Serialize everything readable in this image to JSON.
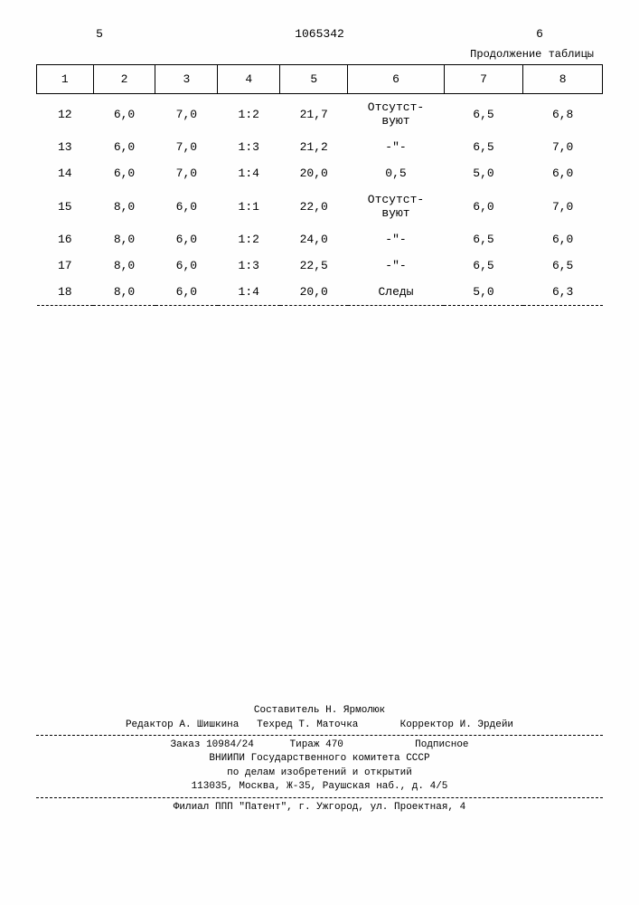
{
  "header": {
    "page_col_left": "5",
    "doc_number": "1065342",
    "page_col_right": "6",
    "continuation_label": "Продолжение таблицы"
  },
  "table": {
    "column_widths": [
      "10%",
      "11%",
      "11%",
      "11%",
      "12%",
      "17%",
      "14%",
      "14%"
    ],
    "headers": [
      "1",
      "2",
      "3",
      "4",
      "5",
      "6",
      "7",
      "8"
    ],
    "rows": [
      [
        "12",
        "6,0",
        "7,0",
        "1:2",
        "21,7",
        "Отсутст-\nвуют",
        "6,5",
        "6,8"
      ],
      [
        "13",
        "6,0",
        "7,0",
        "1:3",
        "21,2",
        "-\"-",
        "6,5",
        "7,0"
      ],
      [
        "14",
        "6,0",
        "7,0",
        "1:4",
        "20,0",
        "0,5",
        "5,0",
        "6,0"
      ],
      [
        "15",
        "8,0",
        "6,0",
        "1:1",
        "22,0",
        "Отсутст-\nвуют",
        "6,0",
        "7,0"
      ],
      [
        "16",
        "8,0",
        "6,0",
        "1:2",
        "24,0",
        "-\"-",
        "6,5",
        "6,0"
      ],
      [
        "17",
        "8,0",
        "6,0",
        "1:3",
        "22,5",
        "-\"-",
        "6,5",
        "6,5"
      ],
      [
        "18",
        "8,0",
        "6,0",
        "1:4",
        "20,0",
        "Следы",
        "5,0",
        "6,3"
      ]
    ]
  },
  "footer": {
    "compiler_label": "Составитель Н. Ярмолюк",
    "editor_line": "Редактор А. Шишкина   Техред Т. Маточка       Корректор И. Эрдейи",
    "order_line": "Заказ 10984/24      Тираж 470            Подписное",
    "org_line1": "ВНИИПИ Государственного комитета СССР",
    "org_line2": "по делам изобретений и открытий",
    "address_line": "113035, Москва, Ж-35, Раушская наб., д. 4/5",
    "branch_line": "Филиал ППП \"Патент\", г. Ужгород, ул. Проектная, 4"
  },
  "style": {
    "font_family": "Courier New",
    "font_size_body": 13,
    "font_size_footer": 11,
    "text_color": "#000000",
    "background_color": "#fefefe",
    "border_color": "#000000"
  }
}
